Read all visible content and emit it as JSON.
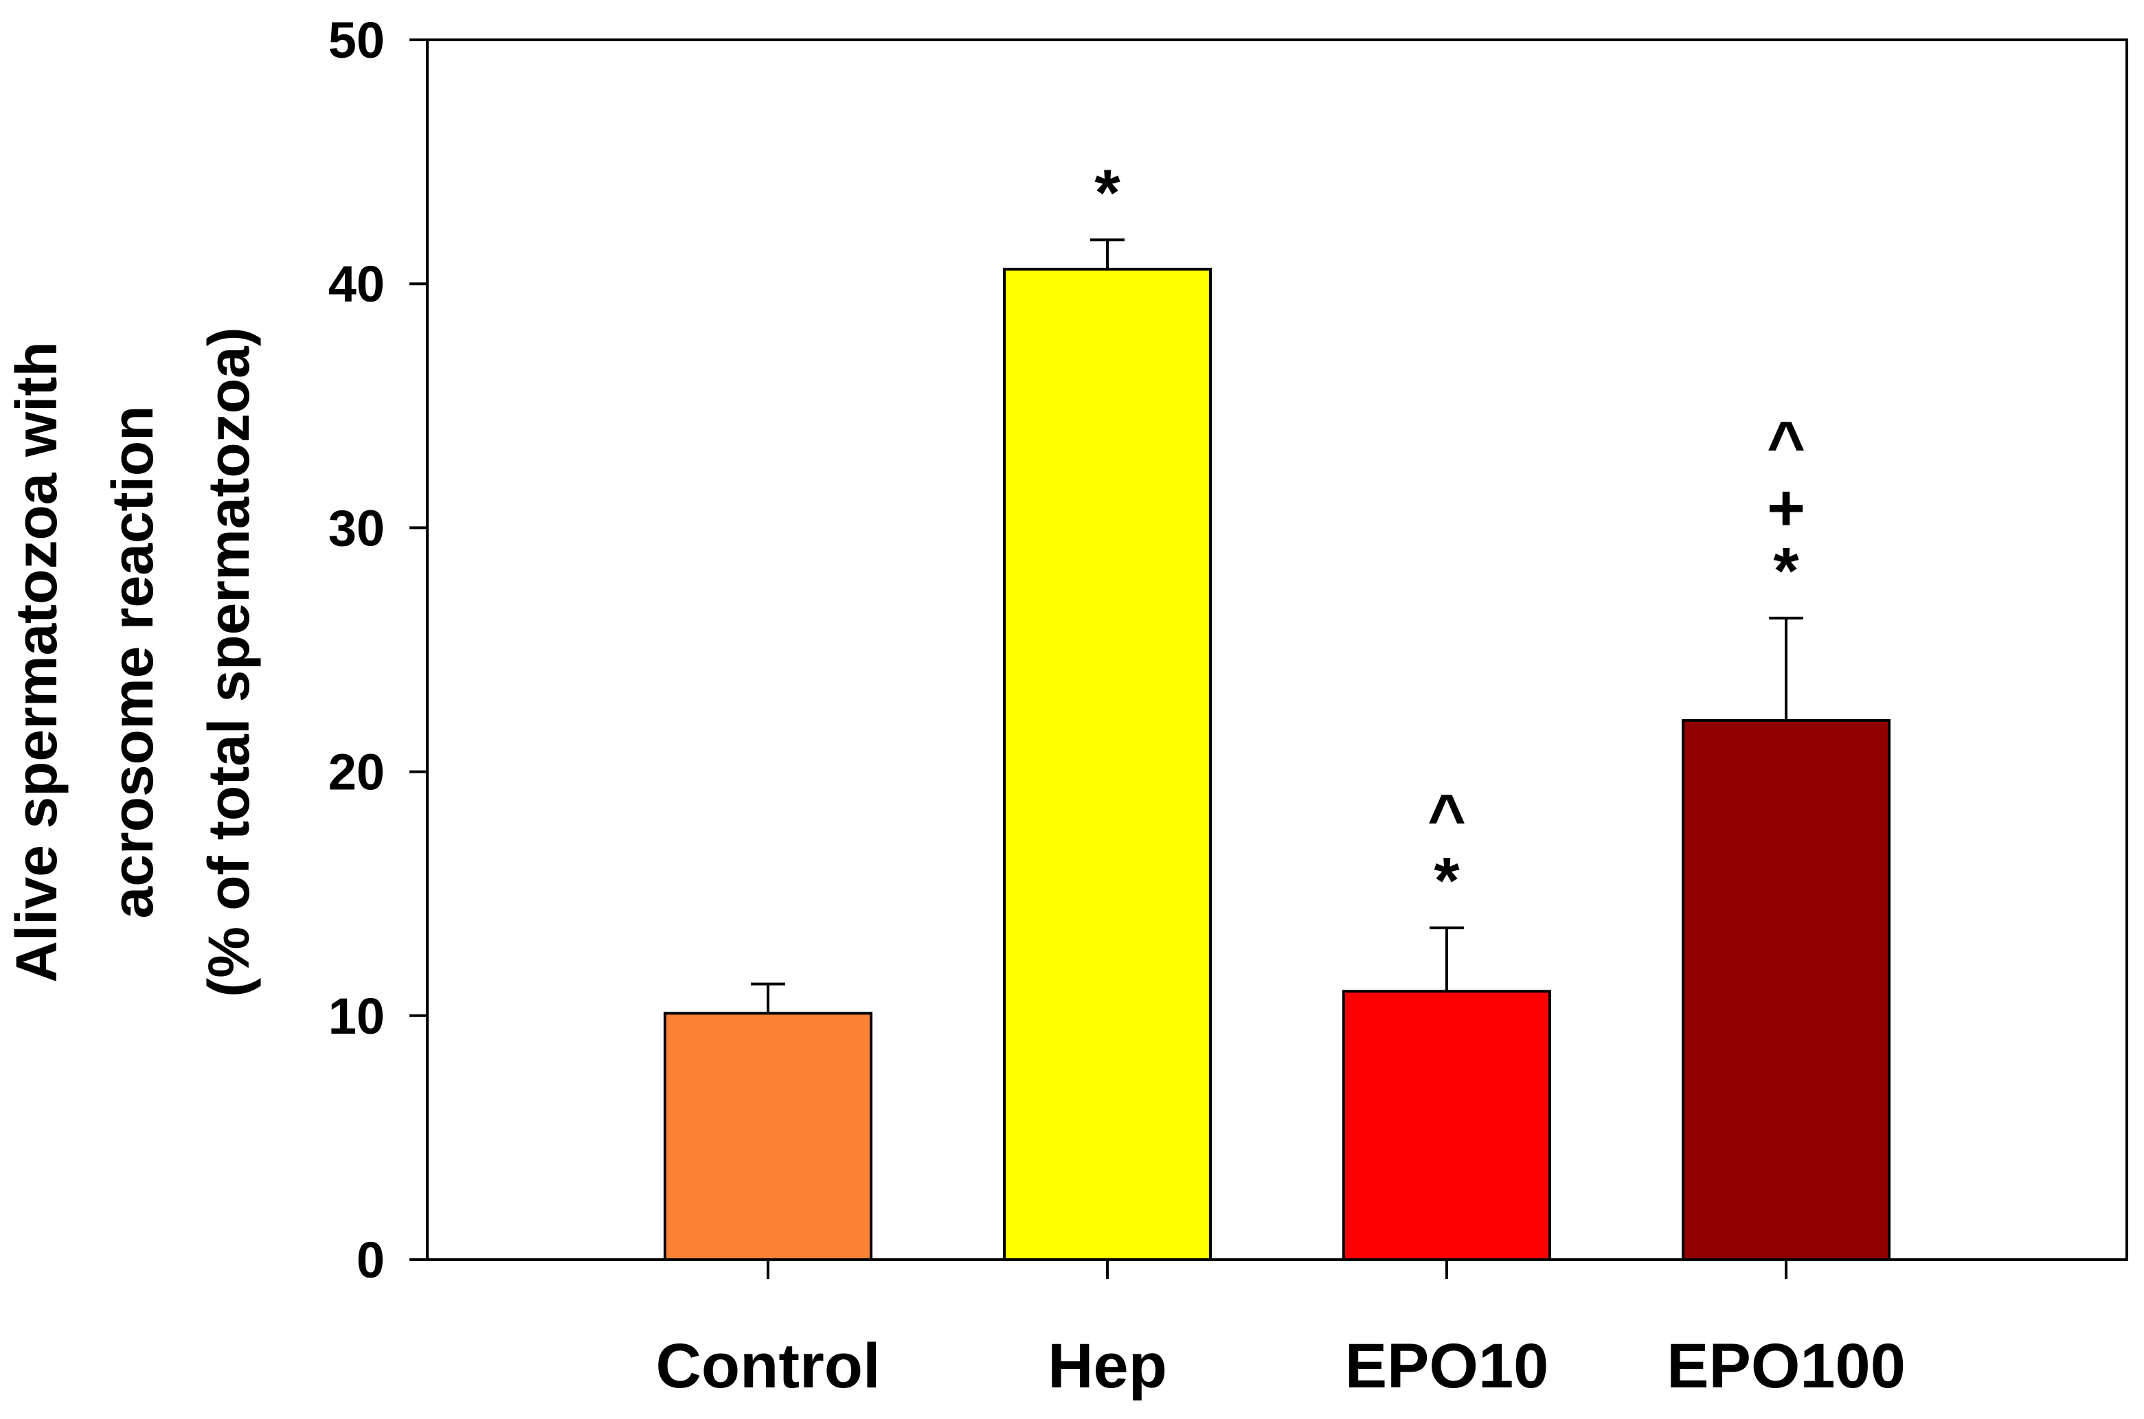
{
  "chart_data": {
    "type": "bar",
    "categories": [
      "Control",
      "Hep",
      "EPO10",
      "EPO100"
    ],
    "values": [
      10.1,
      40.6,
      11.0,
      22.1
    ],
    "errors": [
      1.2,
      1.2,
      2.6,
      4.2
    ],
    "colors": [
      "#fb8235",
      "#ffff00",
      "#ff0000",
      "#910000"
    ],
    "significance": [
      [],
      [
        "*"
      ],
      [
        "*",
        "^"
      ],
      [
        "*",
        "+",
        "^"
      ]
    ],
    "ylabel": [
      "Alive spermatozoa with",
      "acrosome reaction",
      "(% of total spermatozoa)"
    ],
    "xlabel": "",
    "ylim": [
      0,
      50
    ],
    "yticks": [
      0,
      10,
      20,
      30,
      40,
      50
    ],
    "grid": false
  }
}
